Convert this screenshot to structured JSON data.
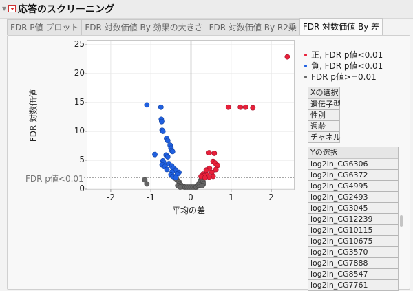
{
  "header": {
    "title": "応答のスクリーニング"
  },
  "tabs": [
    {
      "label": "FDR P値 プロット",
      "active": false
    },
    {
      "label": "FDR 対数価値 By 効果の大きさ",
      "active": false
    },
    {
      "label": "FDR 対数価値 By R2乗",
      "active": false
    },
    {
      "label": "FDR 対数価値 By 差",
      "active": true
    }
  ],
  "plot": {
    "ylabel": "FDR 対数価値",
    "xlabel": "平均の差",
    "threshold_label": "FDR p値<0.01",
    "yticks": [
      "25",
      "20",
      "15",
      "10",
      "5",
      "0"
    ],
    "xticks": [
      "-2",
      "-1",
      "0",
      "1",
      "2"
    ]
  },
  "legend": [
    {
      "label": "正, FDR p値<0.01",
      "color": "#e8203a"
    },
    {
      "label": "負, FDR p値<0.01",
      "color": "#2060e0"
    },
    {
      "label": "FDR p値>=0.01",
      "color": "#666666"
    }
  ],
  "x_select": {
    "header": "Xの選択",
    "items": [
      "遺伝子型",
      "性別",
      "週齢",
      "チャネル"
    ]
  },
  "y_select": {
    "header": "Yの選択",
    "items": [
      "log2in_CG6306",
      "log2in_CG6372",
      "log2in_CG4995",
      "log2in_CG2493",
      "log2in_CG3045",
      "log2in_CG12239",
      "log2in_CG10115",
      "log2in_CG10675",
      "log2in_CG3570",
      "log2in_CG7888",
      "log2in_CG8547",
      "log2in_CG7761"
    ]
  },
  "chart_data": {
    "type": "scatter",
    "title": "FDR 対数価値 By 差",
    "xlabel": "平均の差",
    "ylabel": "FDR 対数価値",
    "xlim": [
      -2.6,
      2.6
    ],
    "ylim": [
      0,
      25.5
    ],
    "xticks": [
      -2,
      -1,
      0,
      1,
      2
    ],
    "yticks": [
      0,
      5,
      10,
      15,
      20,
      25
    ],
    "grid": true,
    "legend_position": "right",
    "reference_lines": [
      {
        "axis": "y",
        "value": 2,
        "label": "FDR p値<0.01",
        "style": "dotted"
      },
      {
        "axis": "x",
        "value": 0,
        "style": "solid"
      }
    ],
    "series": [
      {
        "name": "正, FDR p値<0.01",
        "color": "#e8203a",
        "points": [
          [
            2.4,
            22.9
          ],
          [
            0.93,
            14.2
          ],
          [
            1.23,
            14.2
          ],
          [
            1.36,
            14.2
          ],
          [
            1.54,
            14.1
          ],
          [
            0.45,
            6.3
          ],
          [
            0.58,
            6.2
          ],
          [
            0.55,
            4.8
          ],
          [
            0.6,
            4.5
          ],
          [
            0.66,
            4.1
          ],
          [
            0.62,
            3.4
          ],
          [
            0.46,
            3.6
          ],
          [
            0.38,
            3.3
          ],
          [
            0.52,
            2.9
          ],
          [
            0.3,
            2.6
          ],
          [
            0.4,
            2.5
          ],
          [
            0.33,
            2.3
          ],
          [
            0.25,
            2.2
          ],
          [
            0.55,
            2.2
          ],
          [
            0.45,
            2.1
          ],
          [
            0.35,
            2.0
          ]
        ]
      },
      {
        "name": "負, FDR p値<0.01",
        "color": "#2060e0",
        "points": [
          [
            -1.1,
            14.6
          ],
          [
            -0.75,
            14.2
          ],
          [
            -0.74,
            12.1
          ],
          [
            -0.73,
            11.7
          ],
          [
            -0.72,
            10.2
          ],
          [
            -0.7,
            10.0
          ],
          [
            -0.61,
            8.8
          ],
          [
            -0.58,
            8.4
          ],
          [
            -0.52,
            7.6
          ],
          [
            -0.5,
            7.1
          ],
          [
            -0.48,
            6.7
          ],
          [
            -0.46,
            6.5
          ],
          [
            -0.9,
            6.0
          ],
          [
            -0.62,
            5.9
          ],
          [
            -0.58,
            5.6
          ],
          [
            -0.7,
            4.9
          ],
          [
            -0.68,
            4.6
          ],
          [
            -0.55,
            4.4
          ],
          [
            -0.72,
            4.2
          ],
          [
            -0.65,
            3.9
          ],
          [
            -0.48,
            4.0
          ],
          [
            -0.44,
            3.6
          ],
          [
            -0.6,
            3.4
          ],
          [
            -0.38,
            3.3
          ],
          [
            -0.47,
            3.0
          ],
          [
            -0.3,
            2.9
          ],
          [
            -0.34,
            2.6
          ],
          [
            -0.5,
            2.5
          ],
          [
            -0.45,
            2.2
          ],
          [
            -0.38,
            2.0
          ]
        ]
      },
      {
        "name": "FDR p値>=0.01",
        "color": "#666666",
        "points": [
          [
            -1.15,
            1.6
          ],
          [
            -1.1,
            0.9
          ],
          [
            -0.4,
            1.9
          ],
          [
            -0.35,
            1.6
          ],
          [
            -0.3,
            1.3
          ],
          [
            -0.28,
            1.0
          ],
          [
            -0.25,
            0.7
          ],
          [
            -0.22,
            0.5
          ],
          [
            -0.18,
            0.4
          ],
          [
            -0.15,
            0.25
          ],
          [
            -0.1,
            0.1
          ],
          [
            -0.05,
            0.0
          ],
          [
            0.0,
            0.0
          ],
          [
            0.05,
            0.05
          ],
          [
            0.1,
            0.15
          ],
          [
            0.13,
            0.3
          ],
          [
            0.16,
            0.5
          ],
          [
            0.18,
            0.7
          ],
          [
            0.2,
            0.95
          ],
          [
            0.22,
            1.2
          ],
          [
            0.24,
            1.5
          ],
          [
            0.27,
            1.7
          ],
          [
            0.3,
            1.3
          ],
          [
            0.32,
            1.0
          ],
          [
            0.28,
            0.6
          ],
          [
            -0.33,
            0.6
          ],
          [
            -0.27,
            0.2
          ]
        ]
      }
    ]
  }
}
